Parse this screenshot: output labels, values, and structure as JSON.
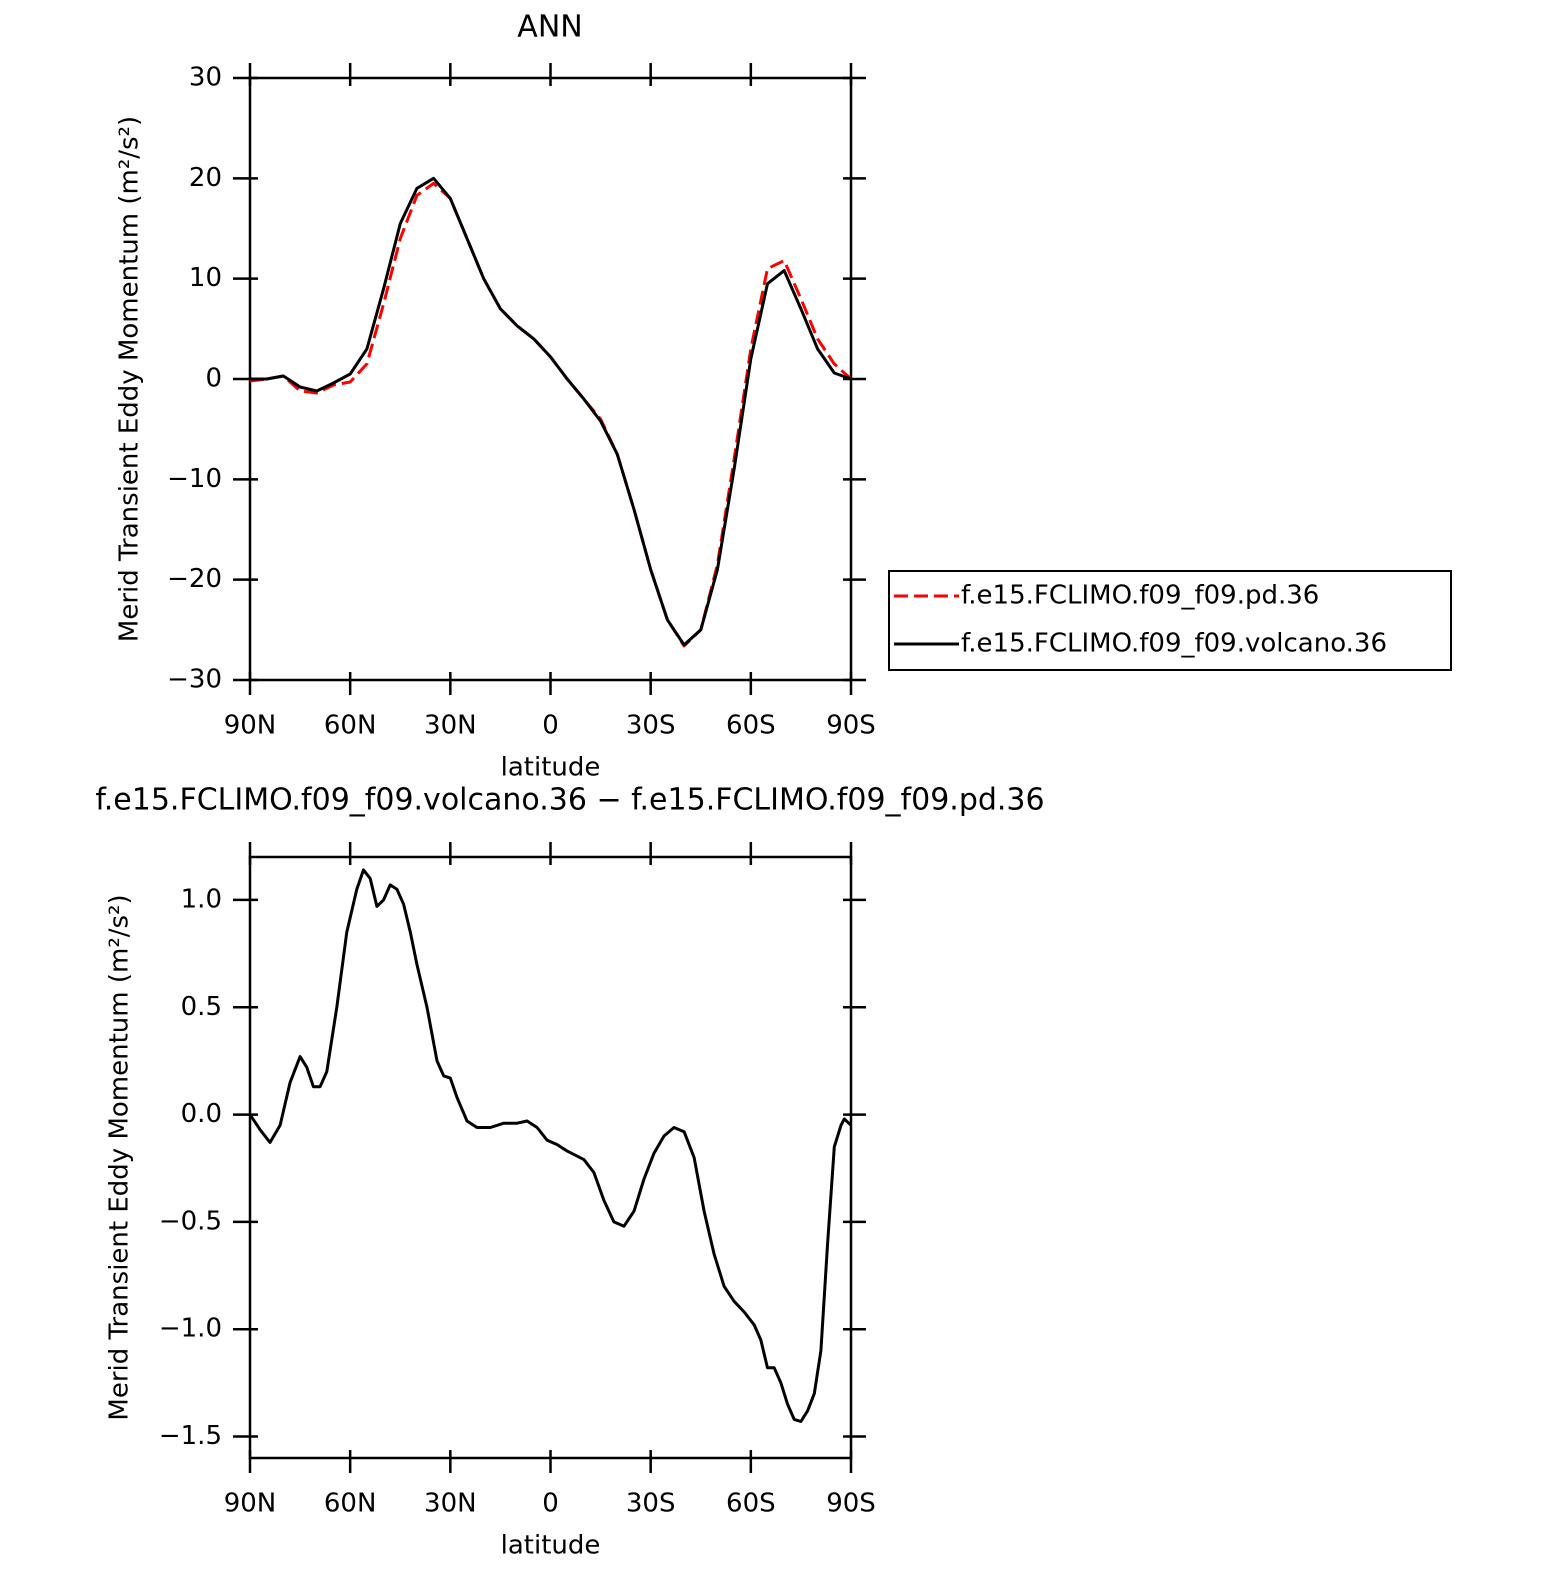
{
  "chart_data": [
    {
      "type": "line",
      "title": "ANN",
      "xlabel": "latitude",
      "ylabel": "Merid Transient Eddy Momentum (m²/s²)",
      "x": [
        90,
        85,
        80,
        75,
        70,
        65,
        60,
        55,
        50,
        45,
        40,
        35,
        30,
        25,
        20,
        15,
        10,
        5,
        0,
        -5,
        -10,
        -15,
        -20,
        -25,
        -30,
        -35,
        -40,
        -45,
        -50,
        -55,
        -60,
        -65,
        -70,
        -75,
        -80,
        -85,
        -90
      ],
      "series": [
        {
          "name": "f.e15.FCLIMO.f09_f09.pd.36",
          "color": "#ff0000",
          "line_style": "dashed",
          "values": [
            -0.2,
            0,
            0.3,
            -1.2,
            -1.4,
            -0.6,
            -0.3,
            1.5,
            7.5,
            14,
            18.3,
            19.5,
            18,
            14,
            10,
            7,
            5.3,
            4,
            2.2,
            0,
            -2,
            -4,
            -7.5,
            -13,
            -19,
            -24,
            -26.6,
            -25,
            -18.5,
            -8,
            3,
            11,
            11.8,
            8,
            4,
            1.5,
            0
          ]
        },
        {
          "name": "f.e15.FCLIMO.f09_f09.volcano.36",
          "color": "#000000",
          "line_style": "solid",
          "values": [
            0,
            0,
            0.3,
            -0.8,
            -1.2,
            -0.4,
            0.5,
            3,
            9,
            15.5,
            19,
            20,
            18,
            14,
            10,
            7,
            5.3,
            4,
            2.2,
            0,
            -2,
            -4.2,
            -7.5,
            -13,
            -19,
            -24,
            -26.5,
            -25,
            -19,
            -9,
            2,
            9.5,
            10.8,
            7,
            3,
            0.6,
            0
          ]
        }
      ],
      "xlim": [
        90,
        -90
      ],
      "xticks": [
        {
          "value": 90,
          "label": "90N"
        },
        {
          "value": 60,
          "label": "60N"
        },
        {
          "value": 30,
          "label": "30N"
        },
        0,
        {
          "value": -30,
          "label": "30S"
        },
        {
          "value": -60,
          "label": "60S"
        },
        {
          "value": -90,
          "label": "90S"
        }
      ],
      "ylim": [
        -30,
        30
      ],
      "yticks": [
        {
          "value": -30,
          "label": "−30"
        },
        {
          "value": -20,
          "label": "−20"
        },
        {
          "value": -10,
          "label": "−10"
        },
        0,
        10,
        20,
        30
      ],
      "legend": "right"
    },
    {
      "type": "line",
      "title": "f.e15.FCLIMO.f09_f09.volcano.36 − f.e15.FCLIMO.f09_f09.pd.36",
      "xlabel": "latitude",
      "ylabel": "Merid Transient Eddy Momentum (m²/s²)",
      "x": [
        90,
        87,
        84,
        81,
        78,
        75,
        73,
        71,
        69,
        67,
        64,
        61,
        58,
        56,
        54,
        52,
        50,
        48,
        46,
        44,
        42,
        40,
        37,
        34,
        32,
        30,
        28,
        25,
        22,
        18,
        14,
        10,
        7,
        4,
        1,
        -2,
        -5,
        -10,
        -13,
        -16,
        -19,
        -22,
        -25,
        -28,
        -31,
        -34,
        -37,
        -40,
        -43,
        -46,
        -49,
        -52,
        -55,
        -58,
        -61,
        -63,
        -65,
        -67,
        -69,
        -71,
        -73,
        -75,
        -77,
        -79,
        -81,
        -83,
        -85,
        -87,
        -88,
        -90
      ],
      "values": [
        0,
        -0.07,
        -0.13,
        -0.05,
        0.15,
        0.27,
        0.22,
        0.13,
        0.13,
        0.2,
        0.5,
        0.85,
        1.05,
        1.14,
        1.1,
        0.97,
        1.0,
        1.07,
        1.05,
        0.98,
        0.85,
        0.7,
        0.5,
        0.25,
        0.18,
        0.17,
        0.08,
        -0.03,
        -0.06,
        -0.06,
        -0.04,
        -0.04,
        -0.03,
        -0.06,
        -0.12,
        -0.14,
        -0.17,
        -0.21,
        -0.27,
        -0.4,
        -0.5,
        -0.52,
        -0.45,
        -0.3,
        -0.18,
        -0.1,
        -0.06,
        -0.08,
        -0.2,
        -0.45,
        -0.65,
        -0.8,
        -0.87,
        -0.92,
        -0.98,
        -1.05,
        -1.18,
        -1.18,
        -1.25,
        -1.35,
        -1.42,
        -1.43,
        -1.38,
        -1.3,
        -1.1,
        -0.6,
        -0.15,
        -0.05,
        -0.02,
        -0.05
      ],
      "color": "#000000",
      "xlim": [
        90,
        -90
      ],
      "xticks": [
        {
          "value": 90,
          "label": "90N"
        },
        {
          "value": 60,
          "label": "60N"
        },
        {
          "value": 30,
          "label": "30N"
        },
        0,
        {
          "value": -30,
          "label": "30S"
        },
        {
          "value": -60,
          "label": "60S"
        },
        {
          "value": -90,
          "label": "90S"
        }
      ],
      "ylim": [
        -1.6,
        1.2
      ],
      "yticks": [
        {
          "value": -1.5,
          "label": "−1.5"
        },
        {
          "value": -1,
          "label": "−1.0"
        },
        {
          "value": -0.5,
          "label": "−0.5"
        },
        {
          "value": 0,
          "label": "0.0"
        },
        0.5,
        {
          "value": 1,
          "label": "1.0"
        }
      ]
    }
  ]
}
